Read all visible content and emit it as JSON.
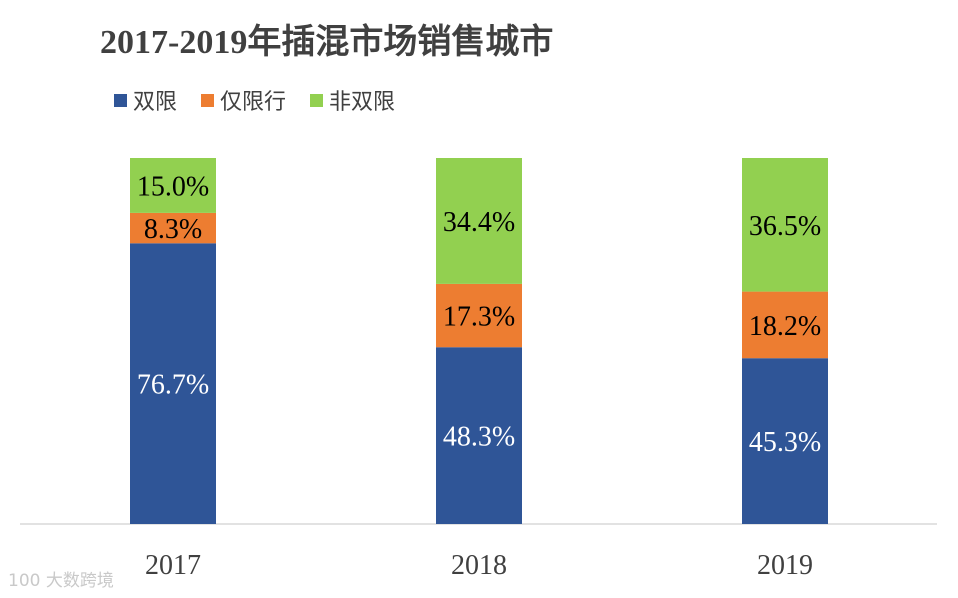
{
  "chart_data": {
    "type": "bar",
    "stacked": true,
    "normalized": true,
    "title": "2017-2019年插混市场销售城市",
    "categories": [
      "2017",
      "2018",
      "2019"
    ],
    "series": [
      {
        "name": "双限",
        "color": "#2F5597",
        "values": [
          76.7,
          48.3,
          45.3
        ],
        "labels": [
          "76.7%",
          "48.3%",
          "45.3%"
        ],
        "label_color": "#ffffff"
      },
      {
        "name": "仅限行",
        "color": "#ED7D31",
        "values": [
          8.3,
          17.3,
          18.2
        ],
        "labels": [
          "8.3%",
          "17.3%",
          "18.2%"
        ],
        "label_color": "#000000"
      },
      {
        "name": "非双限",
        "color": "#92D050",
        "values": [
          15.0,
          34.4,
          36.5
        ],
        "labels": [
          "15.0%",
          "34.4%",
          "36.5%"
        ],
        "label_color": "#000000"
      }
    ],
    "legend_position": "top-left",
    "grid": false
  },
  "watermark": "100 大数跨境"
}
